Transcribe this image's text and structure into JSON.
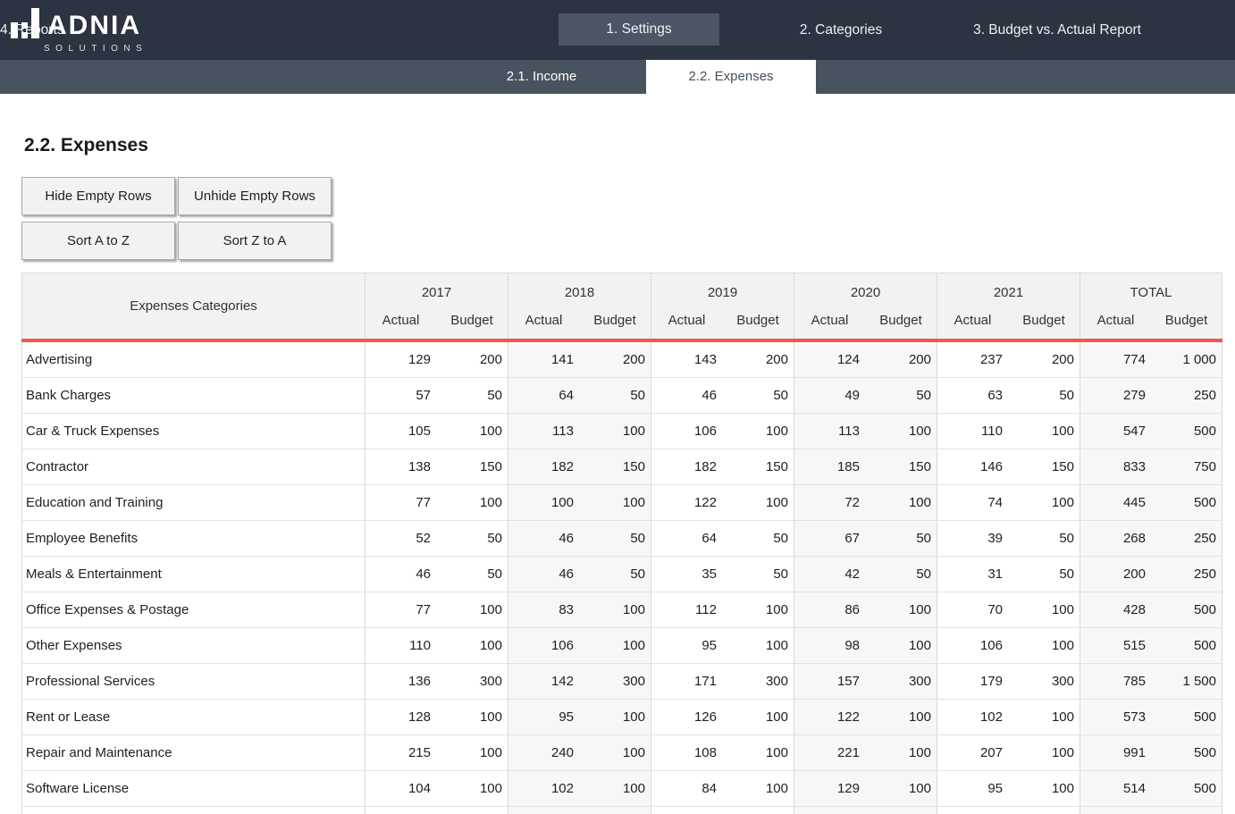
{
  "colors": {
    "header-bg": "#2b3440",
    "subnav-bg": "#47535f",
    "tab-active-bg": "#4a5663",
    "accent": "#f2564d",
    "table-header-bg": "#f2f2f2",
    "group-alt-bg": "#f7f7f9"
  },
  "brand": {
    "name": "ADNIA",
    "subtitle": "SOLUTIONS"
  },
  "top_nav": {
    "items": [
      {
        "label": "1. Settings",
        "active": false
      },
      {
        "label": "2. Categories",
        "active": true
      },
      {
        "label": "3. Budget vs. Actual Report",
        "active": false
      },
      {
        "label": "4. Reports",
        "active": false
      }
    ]
  },
  "sub_nav": {
    "items": [
      {
        "label": "2.1. Income",
        "active": false
      },
      {
        "label": "2.2. Expenses",
        "active": true
      }
    ]
  },
  "page": {
    "title": "2.2. Expenses"
  },
  "toolbar": {
    "buttons": [
      "Hide Empty Rows",
      "Unhide Empty Rows",
      "Sort A to Z",
      "Sort Z to A"
    ]
  },
  "table": {
    "category_header": "Expenses Categories",
    "year_groups": [
      "2017",
      "2018",
      "2019",
      "2020",
      "2021",
      "TOTAL"
    ],
    "sub_headers": [
      "Actual",
      "Budget"
    ],
    "rows": [
      {
        "category": "Advertising",
        "values": [
          "129",
          "200",
          "141",
          "200",
          "143",
          "200",
          "124",
          "200",
          "237",
          "200",
          "774",
          "1 000"
        ]
      },
      {
        "category": "Bank Charges",
        "values": [
          "57",
          "50",
          "64",
          "50",
          "46",
          "50",
          "49",
          "50",
          "63",
          "50",
          "279",
          "250"
        ]
      },
      {
        "category": "Car & Truck Expenses",
        "values": [
          "105",
          "100",
          "113",
          "100",
          "106",
          "100",
          "113",
          "100",
          "110",
          "100",
          "547",
          "500"
        ]
      },
      {
        "category": "Contractor",
        "values": [
          "138",
          "150",
          "182",
          "150",
          "182",
          "150",
          "185",
          "150",
          "146",
          "150",
          "833",
          "750"
        ]
      },
      {
        "category": "Education and Training",
        "values": [
          "77",
          "100",
          "100",
          "100",
          "122",
          "100",
          "72",
          "100",
          "74",
          "100",
          "445",
          "500"
        ]
      },
      {
        "category": "Employee Benefits",
        "values": [
          "52",
          "50",
          "46",
          "50",
          "64",
          "50",
          "67",
          "50",
          "39",
          "50",
          "268",
          "250"
        ]
      },
      {
        "category": "Meals & Entertainment",
        "values": [
          "46",
          "50",
          "46",
          "50",
          "35",
          "50",
          "42",
          "50",
          "31",
          "50",
          "200",
          "250"
        ]
      },
      {
        "category": "Office Expenses & Postage",
        "values": [
          "77",
          "100",
          "83",
          "100",
          "112",
          "100",
          "86",
          "100",
          "70",
          "100",
          "428",
          "500"
        ]
      },
      {
        "category": "Other Expenses",
        "values": [
          "110",
          "100",
          "106",
          "100",
          "95",
          "100",
          "98",
          "100",
          "106",
          "100",
          "515",
          "500"
        ]
      },
      {
        "category": "Professional Services",
        "values": [
          "136",
          "300",
          "142",
          "300",
          "171",
          "300",
          "157",
          "300",
          "179",
          "300",
          "785",
          "1 500"
        ]
      },
      {
        "category": "Rent or Lease",
        "values": [
          "128",
          "100",
          "95",
          "100",
          "126",
          "100",
          "122",
          "100",
          "102",
          "100",
          "573",
          "500"
        ]
      },
      {
        "category": "Repair and Maintenance",
        "values": [
          "215",
          "100",
          "240",
          "100",
          "108",
          "100",
          "221",
          "100",
          "207",
          "100",
          "991",
          "500"
        ]
      },
      {
        "category": "Software License",
        "values": [
          "104",
          "100",
          "102",
          "100",
          "84",
          "100",
          "129",
          "100",
          "95",
          "100",
          "514",
          "500"
        ]
      }
    ]
  }
}
